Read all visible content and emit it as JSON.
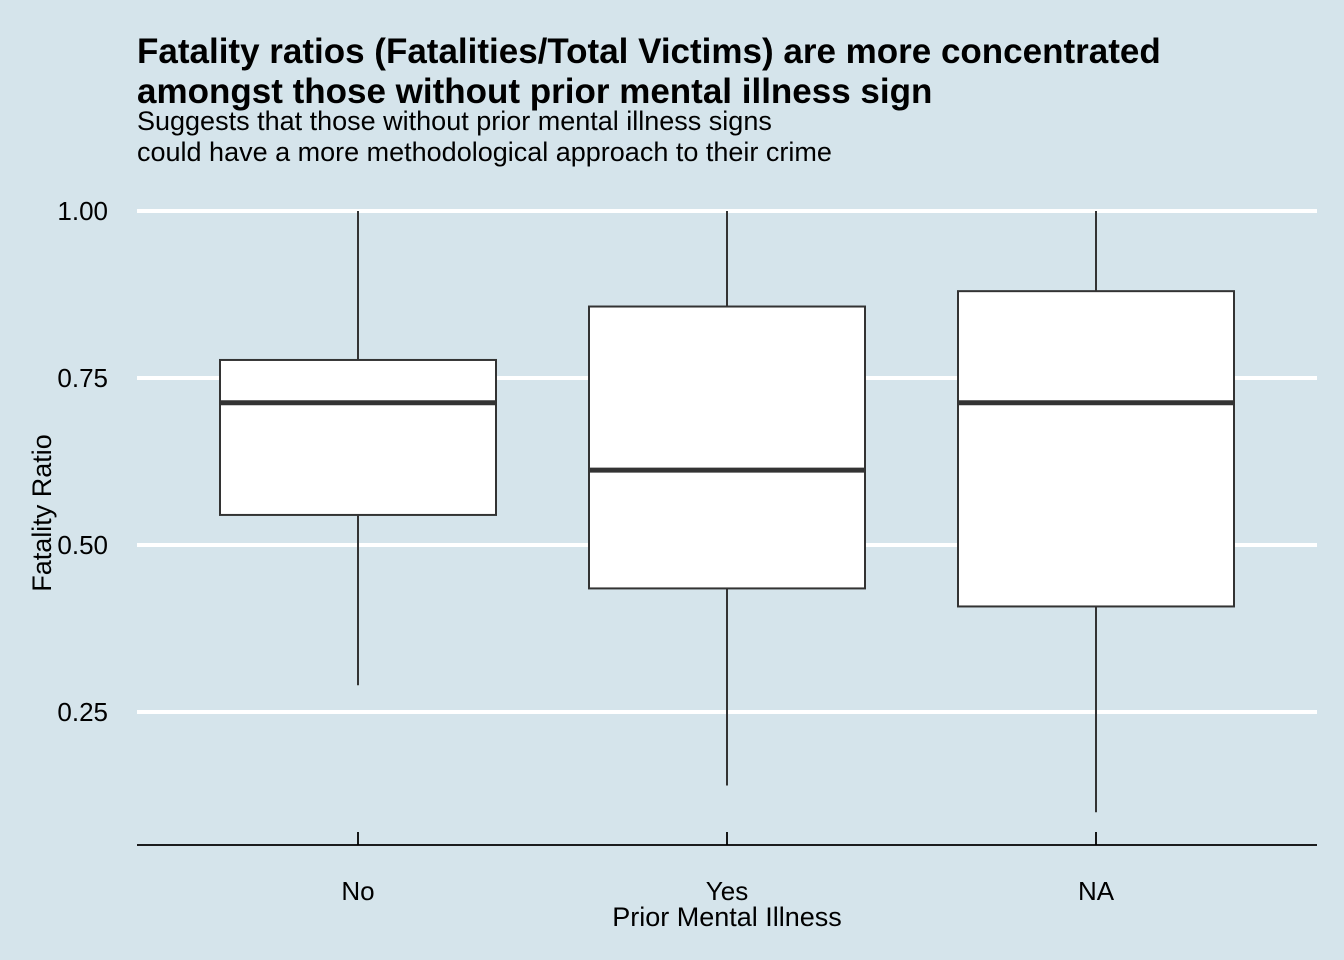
{
  "chart_data": {
    "type": "boxplot",
    "title": [
      "Fatality ratios (Fatalities/Total Victims) are more concentrated",
      "amongst those without prior mental illness sign"
    ],
    "subtitle": [
      "Suggests that those without prior mental illness signs",
      "could have a more methodological approach to their crime"
    ],
    "xlabel": "Prior Mental Illness",
    "ylabel": "Fatality Ratio",
    "categories": [
      "No",
      "Yes",
      "NA"
    ],
    "boxes": [
      {
        "category": "No",
        "min": 0.29,
        "q1": 0.545,
        "median": 0.713,
        "q3": 0.777,
        "max": 1.0
      },
      {
        "category": "Yes",
        "min": 0.14,
        "q1": 0.435,
        "median": 0.612,
        "q3": 0.857,
        "max": 1.0
      },
      {
        "category": "NA",
        "min": 0.1,
        "q1": 0.408,
        "median": 0.713,
        "q3": 0.88,
        "max": 1.0
      }
    ],
    "yticks": [
      0.25,
      0.5,
      0.75,
      1.0
    ],
    "ytick_labels": [
      "0.25",
      "0.50",
      "0.75",
      "1.00"
    ],
    "ylim": [
      0.055,
      1.0
    ],
    "grid": "horizontal major",
    "legend": "none",
    "colors": {
      "background": "#d5e4eb",
      "box_fill": "#ffffff",
      "box_stroke": "#333333",
      "median": "#333333",
      "grid": "#ffffff",
      "axis": "#000000"
    }
  }
}
